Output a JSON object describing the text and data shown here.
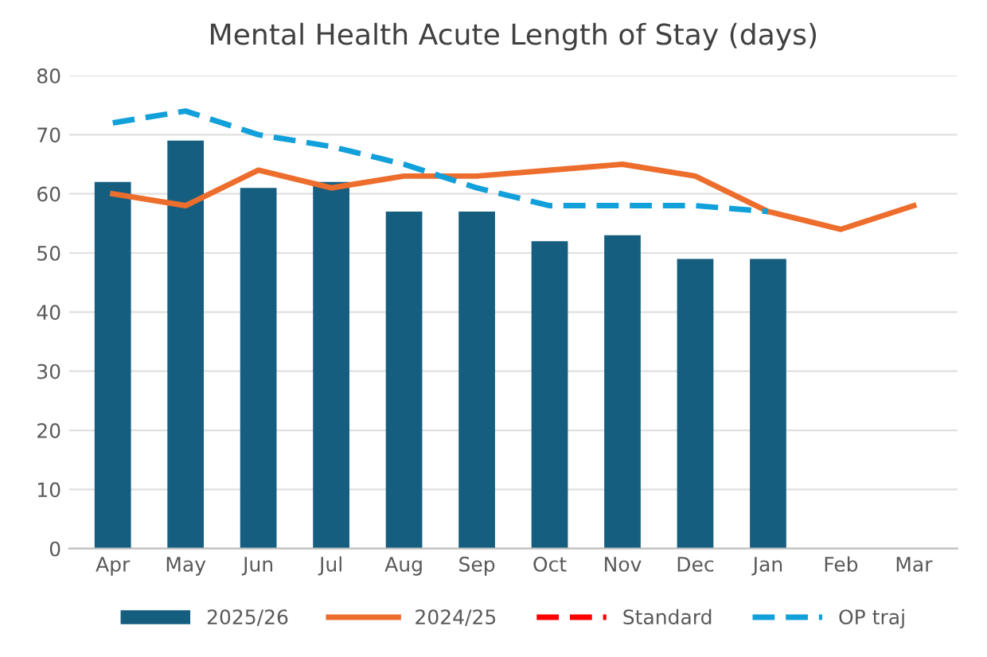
{
  "chart_data": {
    "type": "bar",
    "title": "Mental Health Acute Length of Stay (days)",
    "categories": [
      "Apr",
      "May",
      "Jun",
      "Jul",
      "Aug",
      "Sep",
      "Oct",
      "Nov",
      "Dec",
      "Jan",
      "Feb",
      "Mar"
    ],
    "series": [
      {
        "name": "2025/26",
        "color": "#165e80",
        "values": [
          62,
          69,
          61,
          62,
          57,
          57,
          52,
          53,
          49,
          49,
          null,
          null
        ]
      },
      {
        "name": "2024/25",
        "type": "line",
        "color": "#ed6d2c",
        "line_style": "solid",
        "values": [
          60,
          58,
          64,
          61,
          63,
          63,
          64,
          65,
          63,
          57,
          54,
          58
        ]
      },
      {
        "name": "Standard",
        "type": "line",
        "color": "#ff0000",
        "line_style": "dashed",
        "values": [
          null,
          null,
          null,
          null,
          null,
          null,
          null,
          null,
          null,
          null,
          null,
          null
        ]
      },
      {
        "name": "OP traj",
        "type": "line",
        "color": "#11a0d9",
        "line_style": "dashed",
        "values": [
          72,
          74,
          70,
          68,
          65,
          61,
          58,
          58,
          58,
          57,
          null,
          null
        ]
      }
    ],
    "ylim": [
      0,
      80
    ],
    "yticks": [
      0,
      10,
      20,
      30,
      40,
      50,
      60,
      70,
      80
    ],
    "grid": "y",
    "legend": "bottom",
    "marker": "none"
  }
}
